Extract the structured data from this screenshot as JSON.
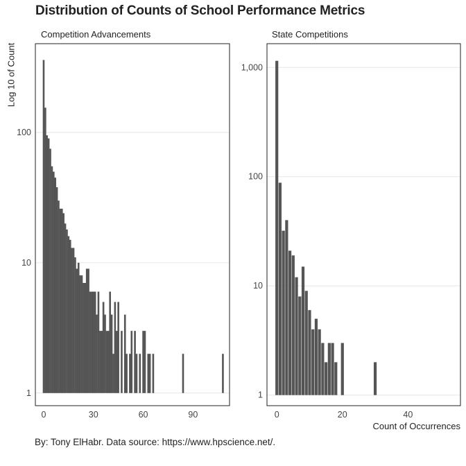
{
  "title": "Distribution of Counts of School Performance Metrics",
  "ylabel": "Log 10 of Count",
  "xlabel": "Count of Occurrences",
  "caption": "By: Tony ElHabr. Data source: https://www.hpscience.net/.",
  "bar_color": "#555555",
  "chart_data": [
    {
      "type": "bar",
      "title": "Competition Advancements",
      "y_scale": "log10",
      "xlim": [
        -5,
        112
      ],
      "ylim": [
        0.8,
        480
      ],
      "x_ticks": [
        0,
        30,
        60,
        90
      ],
      "y_ticks": [
        1,
        10,
        100
      ],
      "y_tick_labels": [
        "1",
        "10",
        "100"
      ],
      "x": [
        0,
        1,
        2,
        3,
        4,
        5,
        6,
        7,
        8,
        9,
        10,
        11,
        12,
        13,
        14,
        15,
        16,
        17,
        18,
        19,
        20,
        21,
        22,
        23,
        24,
        25,
        26,
        27,
        28,
        29,
        30,
        31,
        32,
        33,
        34,
        35,
        36,
        37,
        38,
        39,
        40,
        41,
        42,
        43,
        44,
        45,
        47,
        49,
        50,
        52,
        53,
        55,
        56,
        58,
        60,
        61,
        63,
        64,
        66,
        84,
        108
      ],
      "values": [
        360,
        155,
        95,
        90,
        75,
        55,
        50,
        45,
        38,
        30,
        26,
        26,
        24,
        20,
        18,
        16,
        15,
        13,
        13,
        11,
        9,
        10,
        8,
        8,
        7,
        7,
        9,
        9,
        6,
        6,
        6,
        6,
        4,
        6,
        3,
        3,
        5,
        4,
        3,
        3,
        6,
        4,
        2,
        5,
        3,
        5,
        3,
        4,
        2,
        2,
        3,
        3,
        2,
        2,
        3,
        3,
        2,
        2,
        2,
        2,
        2
      ]
    },
    {
      "type": "bar",
      "title": "State Competitions",
      "y_scale": "log10",
      "xlim": [
        -3,
        56
      ],
      "ylim": [
        0.8,
        1650
      ],
      "x_ticks": [
        0,
        20,
        40
      ],
      "y_ticks": [
        1,
        10,
        100,
        1000
      ],
      "y_tick_labels": [
        "1",
        "10",
        "100",
        "1,000"
      ],
      "x": [
        0,
        1,
        2,
        3,
        4,
        5,
        6,
        7,
        8,
        9,
        10,
        11,
        12,
        13,
        14,
        15,
        16,
        17,
        18,
        20,
        30
      ],
      "values": [
        1150,
        88,
        32,
        40,
        21,
        19,
        12,
        8,
        15,
        9,
        6,
        4,
        5,
        4,
        3,
        2,
        3,
        3,
        2,
        3,
        2
      ]
    }
  ]
}
